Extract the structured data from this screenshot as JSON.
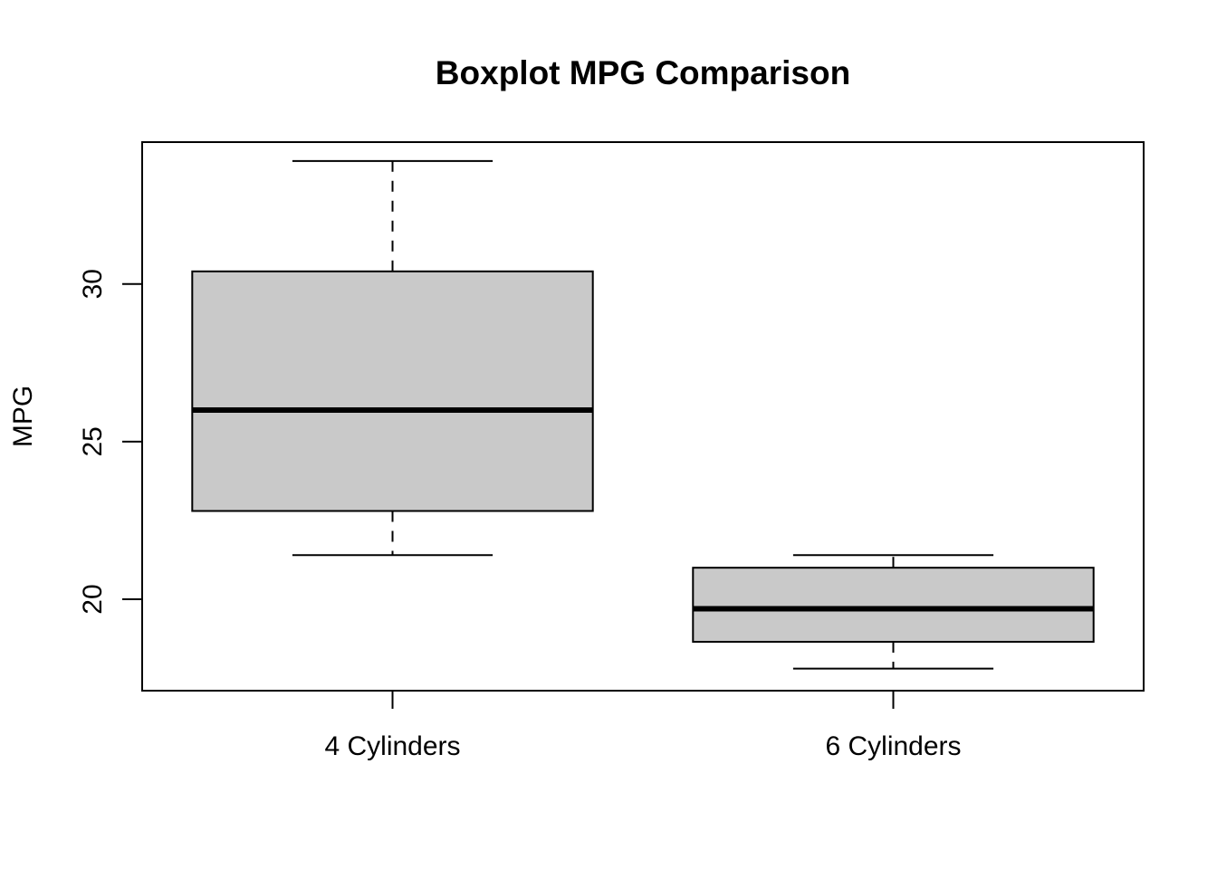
{
  "chart_data": {
    "type": "boxplot",
    "title": "Boxplot MPG Comparison",
    "xlabel": "",
    "ylabel": "MPG",
    "ylim": [
      17.1,
      34.5
    ],
    "yticks": [
      20,
      25,
      30
    ],
    "categories": [
      "4 Cylinders",
      "6 Cylinders"
    ],
    "boxes": [
      {
        "category": "4 Cylinders",
        "whisker_low": 21.4,
        "q1": 22.8,
        "median": 26.0,
        "q3": 30.4,
        "whisker_high": 33.9
      },
      {
        "category": "6 Cylinders",
        "whisker_low": 17.8,
        "q1": 18.65,
        "median": 19.7,
        "q3": 21.0,
        "whisker_high": 21.4
      }
    ],
    "grid": false,
    "box_fill": "#c9c9c9"
  }
}
